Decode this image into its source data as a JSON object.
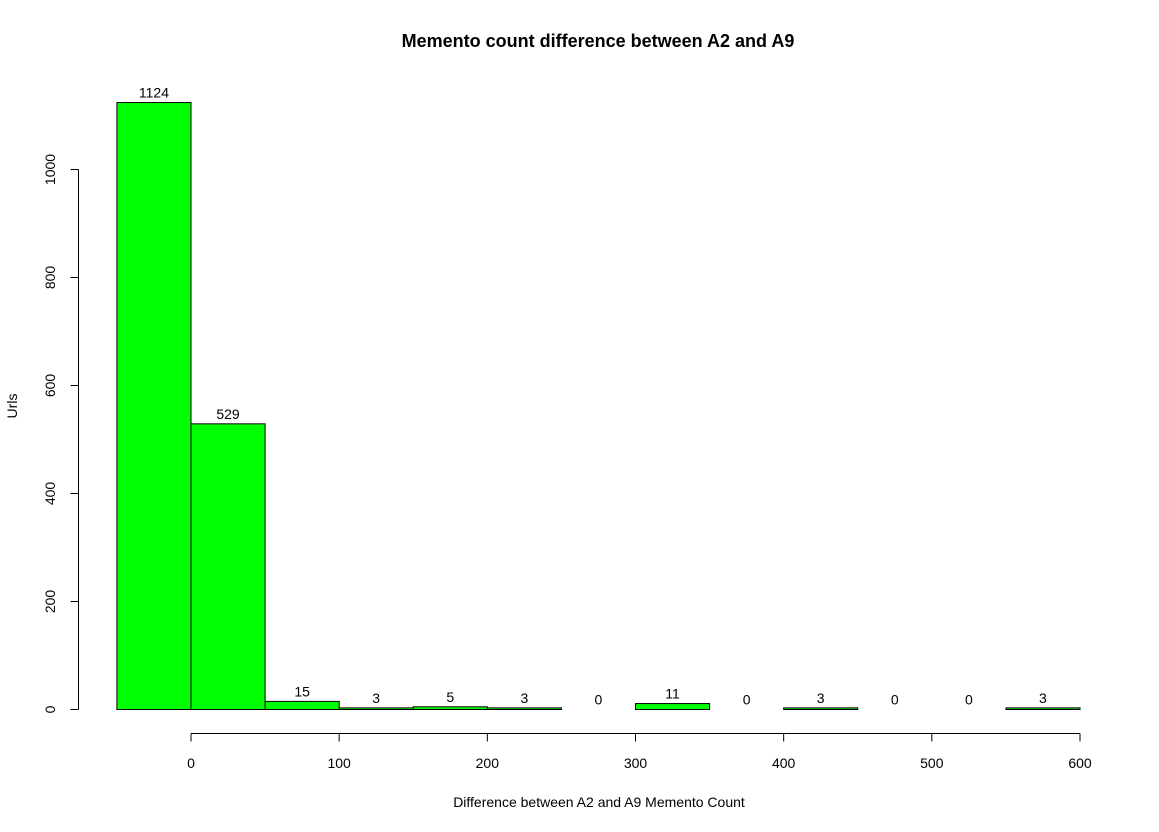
{
  "chart_data": {
    "type": "bar",
    "title": "Memento count difference between A2 and A9",
    "xlabel": "Difference between A2 and A9 Memento Count",
    "ylabel": "Urls",
    "bar_color": "#00ff00",
    "bins": [
      {
        "from": -50,
        "to": 0,
        "value": 1124
      },
      {
        "from": 0,
        "to": 50,
        "value": 529
      },
      {
        "from": 50,
        "to": 100,
        "value": 15
      },
      {
        "from": 100,
        "to": 150,
        "value": 3
      },
      {
        "from": 150,
        "to": 200,
        "value": 5
      },
      {
        "from": 200,
        "to": 250,
        "value": 3
      },
      {
        "from": 250,
        "to": 300,
        "value": 0
      },
      {
        "from": 300,
        "to": 350,
        "value": 11
      },
      {
        "from": 350,
        "to": 400,
        "value": 0
      },
      {
        "from": 400,
        "to": 450,
        "value": 3
      },
      {
        "from": 450,
        "to": 500,
        "value": 0
      },
      {
        "from": 500,
        "to": 550,
        "value": 0
      },
      {
        "from": 550,
        "to": 600,
        "value": 3
      }
    ],
    "data_labels": [
      "1124",
      "529",
      "15",
      "3",
      "5",
      "3",
      "0",
      "11",
      "0",
      "3",
      "0",
      "0",
      "3"
    ],
    "x_ticks": [
      "0",
      "100",
      "200",
      "300",
      "400",
      "500",
      "600"
    ],
    "y_ticks": [
      "0",
      "200",
      "400",
      "600",
      "800",
      "1000"
    ],
    "xlim": [
      -50,
      600
    ],
    "ylim": [
      0,
      1124
    ],
    "grid": false
  }
}
